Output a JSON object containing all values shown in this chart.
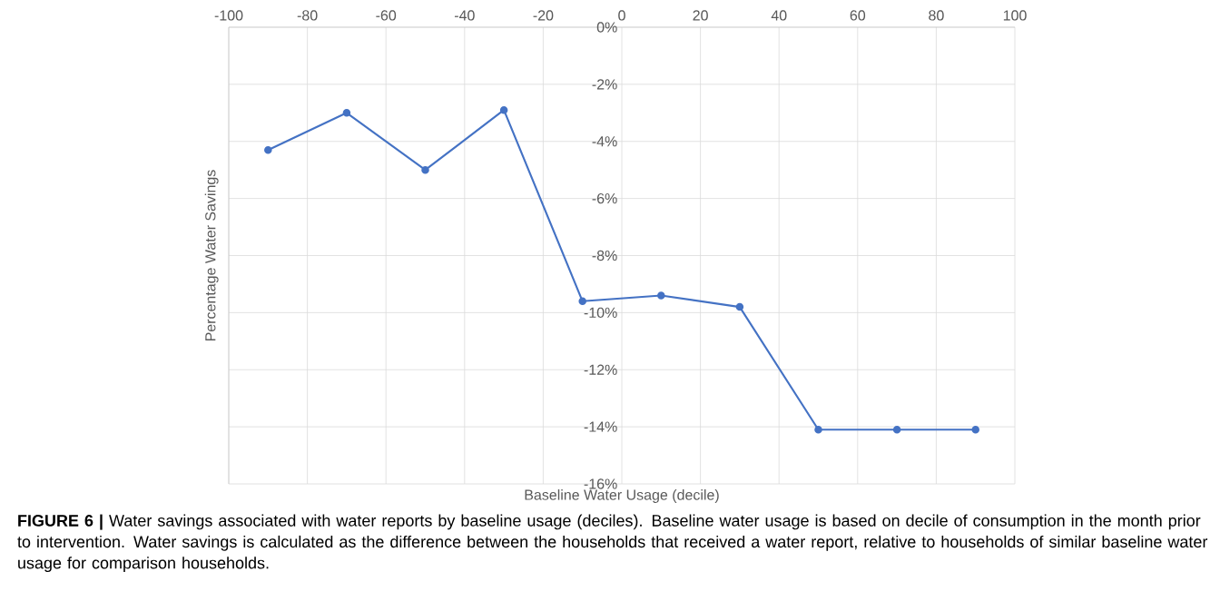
{
  "chart_data": {
    "type": "line",
    "xlabel": "Baseline Water Usage (decile)",
    "ylabel": "Percentage Water Savings",
    "x": [
      -90,
      -70,
      -50,
      -30,
      -10,
      10,
      30,
      50,
      70,
      90
    ],
    "series": [
      {
        "color": "#4472c4",
        "values": [
          -4.3,
          -3.0,
          -5.0,
          -2.9,
          -9.6,
          -9.4,
          -9.8,
          -14.1,
          -14.1,
          -14.1
        ]
      }
    ],
    "xlim": [
      -100,
      100
    ],
    "xticks": [
      -100,
      -80,
      -60,
      -40,
      -20,
      0,
      20,
      40,
      60,
      80,
      100
    ],
    "ylim": [
      -16,
      0
    ],
    "yticks": [
      {
        "value": 0,
        "label": "0%"
      },
      {
        "value": -2,
        "label": "-2%"
      },
      {
        "value": -4,
        "label": "-4%"
      },
      {
        "value": -6,
        "label": "-6%"
      },
      {
        "value": -8,
        "label": "-8%"
      },
      {
        "value": -10,
        "label": "-10%"
      },
      {
        "value": -12,
        "label": "-12%"
      },
      {
        "value": -14,
        "label": "-14%"
      },
      {
        "value": -16,
        "label": "-16%"
      }
    ],
    "grid": true,
    "marker": "circle",
    "line_style": "solid",
    "annotations": [
      "**FIGURE 6 |** Water savings associated with water reports by baseline usage (deciles). Baseline water usage is based on decile of consumption in the month prior to intervention. Water savings is calculated as the difference between the households that received a water report, relative to households of similar baseline water usage for comparison households."
    ]
  }
}
